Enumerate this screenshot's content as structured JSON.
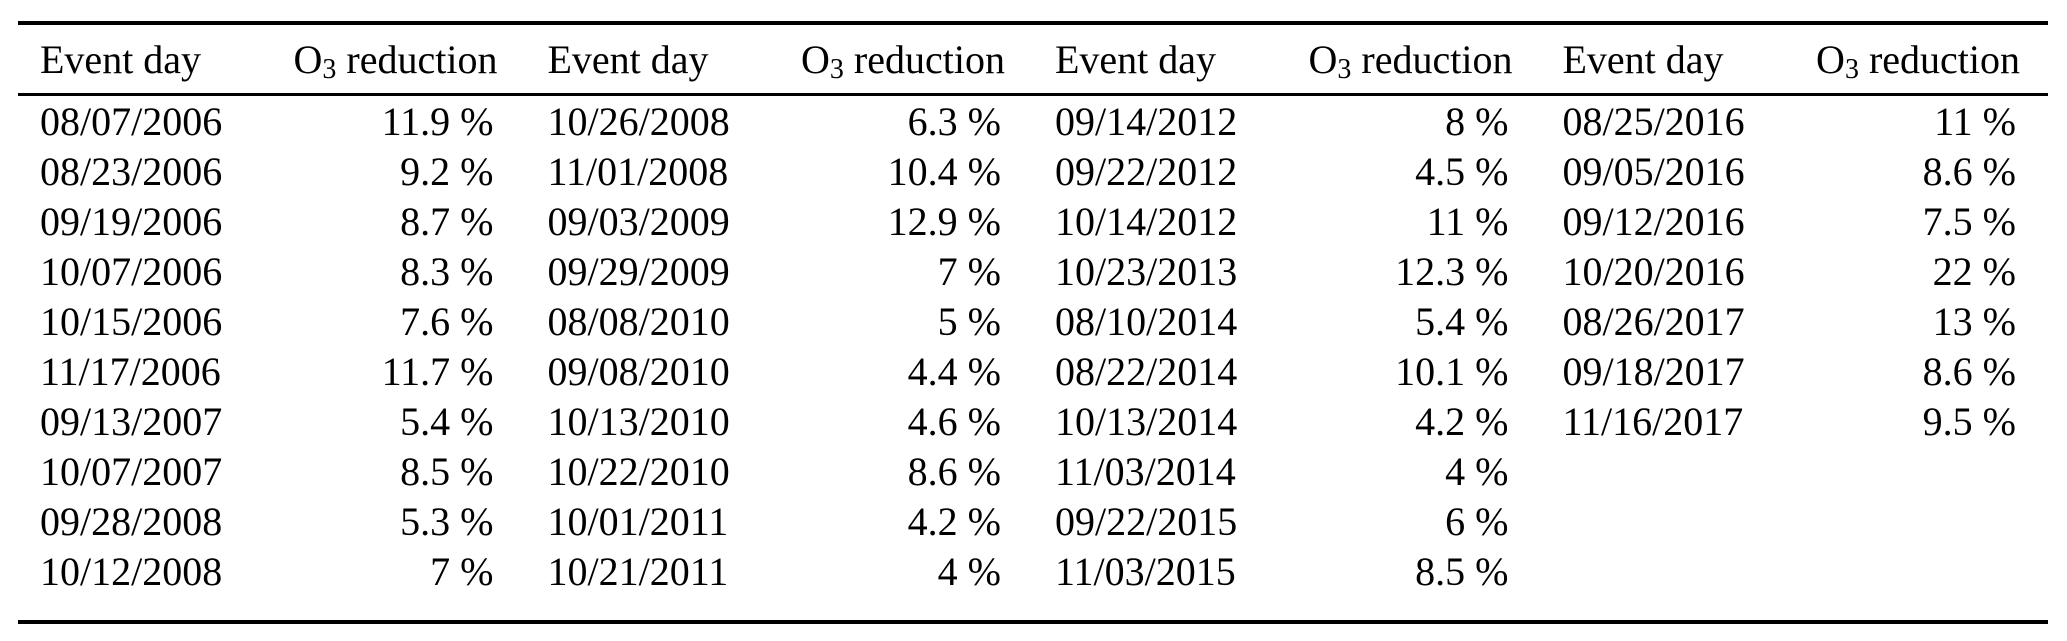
{
  "colors": {
    "background": "#ffffff",
    "text": "#000000",
    "rule": "#000000"
  },
  "table": {
    "column_headers": {
      "event_day": "Event day",
      "o3_symbol": "O",
      "o3_subscript": "3",
      "o3_rest": " reduction"
    },
    "groups": [
      {
        "rows": [
          {
            "date": "08/07/2006",
            "reduction": "11.9 %"
          },
          {
            "date": "08/23/2006",
            "reduction": "9.2 %"
          },
          {
            "date": "09/19/2006",
            "reduction": "8.7 %"
          },
          {
            "date": "10/07/2006",
            "reduction": "8.3 %"
          },
          {
            "date": "10/15/2006",
            "reduction": "7.6 %"
          },
          {
            "date": "11/17/2006",
            "reduction": "11.7 %"
          },
          {
            "date": "09/13/2007",
            "reduction": "5.4 %"
          },
          {
            "date": "10/07/2007",
            "reduction": "8.5 %"
          },
          {
            "date": "09/28/2008",
            "reduction": "5.3 %"
          },
          {
            "date": "10/12/2008",
            "reduction": "7 %"
          }
        ]
      },
      {
        "rows": [
          {
            "date": "10/26/2008",
            "reduction": "6.3 %"
          },
          {
            "date": "11/01/2008",
            "reduction": "10.4 %"
          },
          {
            "date": "09/03/2009",
            "reduction": "12.9 %"
          },
          {
            "date": "09/29/2009",
            "reduction": "7 %"
          },
          {
            "date": "08/08/2010",
            "reduction": "5 %"
          },
          {
            "date": "09/08/2010",
            "reduction": "4.4 %"
          },
          {
            "date": "10/13/2010",
            "reduction": "4.6 %"
          },
          {
            "date": "10/22/2010",
            "reduction": "8.6 %"
          },
          {
            "date": "10/01/2011",
            "reduction": "4.2 %"
          },
          {
            "date": "10/21/2011",
            "reduction": "4 %"
          }
        ]
      },
      {
        "rows": [
          {
            "date": "09/14/2012",
            "reduction": "8 %"
          },
          {
            "date": "09/22/2012",
            "reduction": "4.5 %"
          },
          {
            "date": "10/14/2012",
            "reduction": "11 %"
          },
          {
            "date": "10/23/2013",
            "reduction": "12.3 %"
          },
          {
            "date": "08/10/2014",
            "reduction": "5.4 %"
          },
          {
            "date": "08/22/2014",
            "reduction": "10.1 %"
          },
          {
            "date": "10/13/2014",
            "reduction": "4.2 %"
          },
          {
            "date": "11/03/2014",
            "reduction": "4 %"
          },
          {
            "date": "09/22/2015",
            "reduction": "6 %"
          },
          {
            "date": "11/03/2015",
            "reduction": "8.5 %"
          }
        ]
      },
      {
        "rows": [
          {
            "date": "08/25/2016",
            "reduction": "11 %"
          },
          {
            "date": "09/05/2016",
            "reduction": "8.6 %"
          },
          {
            "date": "09/12/2016",
            "reduction": "7.5 %"
          },
          {
            "date": "10/20/2016",
            "reduction": "22 %"
          },
          {
            "date": "08/26/2017",
            "reduction": "13 %"
          },
          {
            "date": "09/18/2017",
            "reduction": "8.6 %"
          },
          {
            "date": "11/16/2017",
            "reduction": "9.5 %"
          }
        ]
      }
    ]
  }
}
